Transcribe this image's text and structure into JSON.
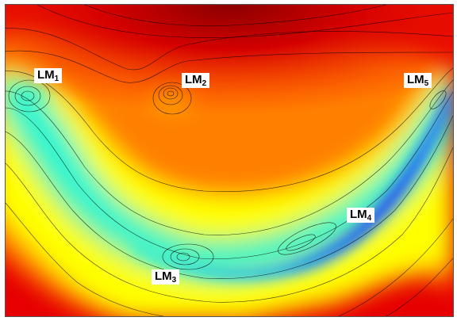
{
  "labels": [
    {
      "base": "LM",
      "sub": "1"
    },
    {
      "base": "LM",
      "sub": "2"
    },
    {
      "base": "LM",
      "sub": "3"
    },
    {
      "base": "LM",
      "sub": "4"
    },
    {
      "base": "LM",
      "sub": "5"
    }
  ],
  "colormap": [
    "#00007f",
    "#0000ff",
    "#1e90ff",
    "#2af5d0",
    "#b8f046",
    "#ffff00",
    "#ffc000",
    "#ff7f00",
    "#ff2a00",
    "#c00000",
    "#7f0000"
  ],
  "contour_color": "#000000"
}
